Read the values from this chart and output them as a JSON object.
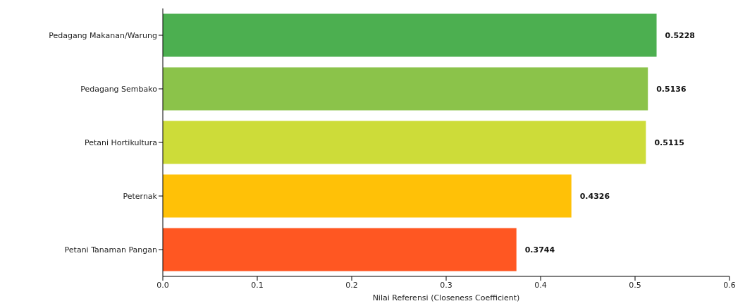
{
  "chart_data": {
    "type": "bar",
    "orientation": "horizontal",
    "xlabel": "Nilai Referensi (Closeness Coefficient)",
    "categories": [
      "Pedagang Makanan/Warung",
      "Pedagang Sembako",
      "Petani Hortikultura",
      "Peternak",
      "Petani Tanaman Pangan"
    ],
    "values": [
      0.5228,
      0.5136,
      0.5115,
      0.4326,
      0.3744
    ],
    "colors": [
      "#4caf50",
      "#8bc34a",
      "#cddc39",
      "#ffc107",
      "#ff5722"
    ],
    "xlim": [
      0,
      0.6
    ],
    "xticks": [
      {
        "value": 0,
        "label": "0.0"
      },
      0.1,
      0.2,
      0.3,
      0.4,
      0.5,
      0.6
    ],
    "data_labels": true
  }
}
